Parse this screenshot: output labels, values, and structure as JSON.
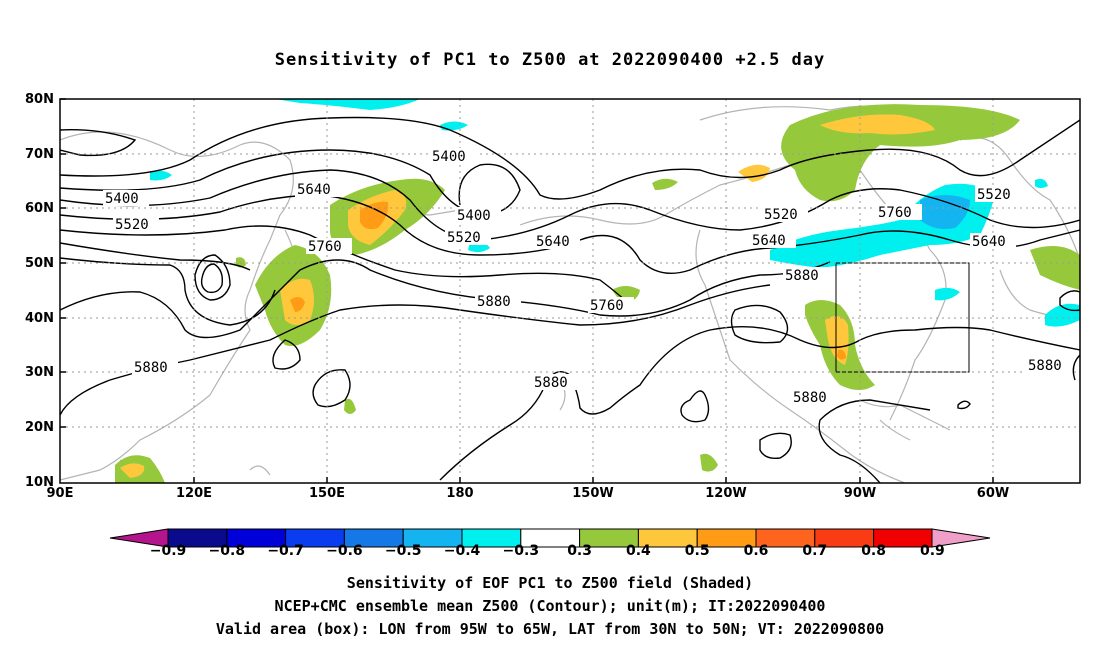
{
  "title": "Sensitivity of PC1 to Z500 at 2022090400 +2.5 day",
  "lat_labels": [
    "80N",
    "70N",
    "60N",
    "50N",
    "40N",
    "30N",
    "20N",
    "10N"
  ],
  "lon_labels": [
    "90E",
    "120E",
    "150E",
    "180",
    "150W",
    "120W",
    "90W",
    "60W"
  ],
  "contour_labels": [
    "5400",
    "5520",
    "5400",
    "5640",
    "5400",
    "5520",
    "5760",
    "5640",
    "5880",
    "5760",
    "5880",
    "5520",
    "5760",
    "5640",
    "5880",
    "5520",
    "5640",
    "5880",
    "5880",
    "5880"
  ],
  "colorbar": {
    "ticks": [
      "−0.9",
      "−0.8",
      "−0.7",
      "−0.6",
      "−0.5",
      "−0.4",
      "−0.3",
      "0.3",
      "0.4",
      "0.5",
      "0.6",
      "0.7",
      "0.8",
      "0.9"
    ],
    "colors": [
      "#0a0a8c",
      "#0000d8",
      "#0a3cf0",
      "#1478e6",
      "#14b4f0",
      "#00f0f0",
      "#ffffff",
      "#96c83c",
      "#ffc83c",
      "#ff9b14",
      "#ff641e",
      "#fa3c14",
      "#f00000"
    ],
    "low_color": "#b4148c",
    "high_color": "#f0a0c8"
  },
  "captions": [
    "Sensitivity of EOF PC1 to Z500 field (Shaded)",
    "NCEP+CMC ensemble mean Z500 (Contour); unit(m); IT:2022090400",
    "Valid area (box): LON from 95W to 65W, LAT from 30N to 50N; VT: 2022090800"
  ]
}
